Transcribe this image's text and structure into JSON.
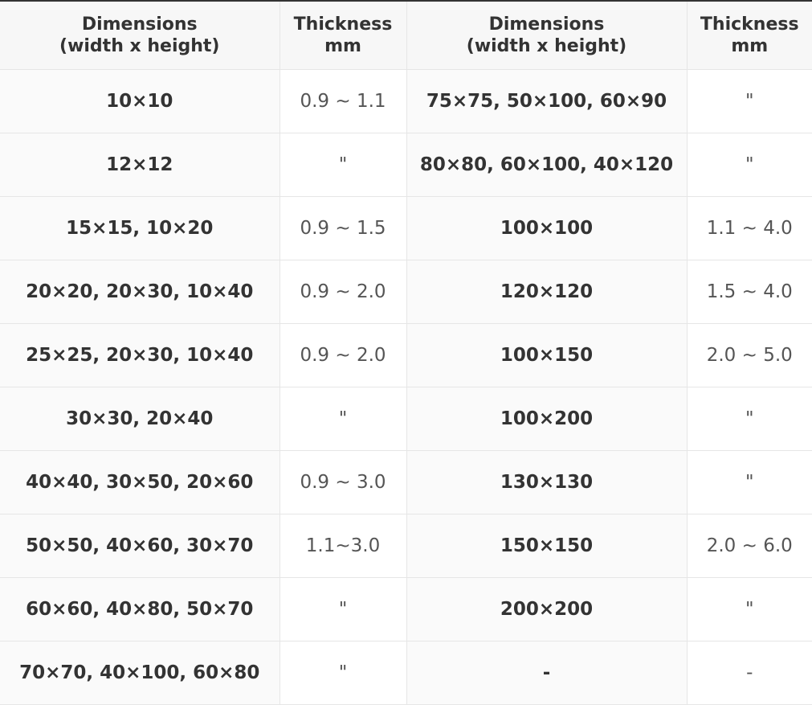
{
  "table": {
    "headers": [
      "Dimensions\n(width x height)",
      "Thickness\nmm",
      "Dimensions\n(width x height)",
      "Thickness\nmm"
    ],
    "rows": [
      [
        "10×10",
        "0.9 ~ 1.1",
        "75×75, 50×100, 60×90",
        "\""
      ],
      [
        "12×12",
        "\"",
        "80×80, 60×100, 40×120",
        "\""
      ],
      [
        "15×15, 10×20",
        "0.9 ~ 1.5",
        "100×100",
        "1.1 ~ 4.0"
      ],
      [
        "20×20, 20×30, 10×40",
        "0.9 ~ 2.0",
        "120×120",
        "1.5 ~ 4.0"
      ],
      [
        "25×25, 20×30, 10×40",
        "0.9 ~ 2.0",
        "100×150",
        "2.0 ~ 5.0"
      ],
      [
        "30×30, 20×40",
        "\"",
        "100×200",
        "\""
      ],
      [
        "40×40, 30×50, 20×60",
        "0.9 ~ 3.0",
        "130×130",
        "\""
      ],
      [
        "50×50, 40×60, 30×70",
        "1.1~3.0",
        "150×150",
        "2.0 ~ 6.0"
      ],
      [
        "60×60, 40×80, 50×70",
        "\"",
        "200×200",
        "\""
      ],
      [
        "70×70, 40×100, 60×80",
        "\"",
        "-",
        "-"
      ]
    ]
  }
}
